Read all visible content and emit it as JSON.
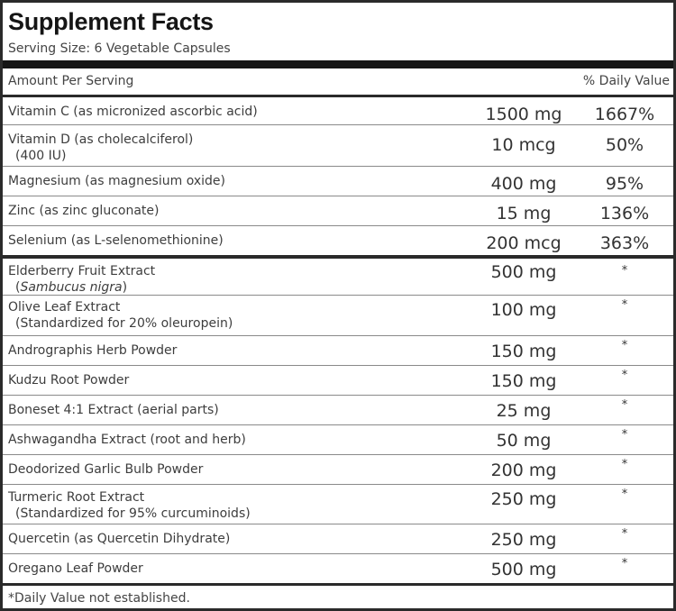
{
  "title": "Supplement Facts",
  "serving_size": "Serving Size: 6 Vegetable Capsules",
  "header": {
    "amount_label": "Amount Per Serving",
    "dv_label": "% Daily Value"
  },
  "vitamins": [
    {
      "name": "Vitamin C (as micronized ascorbic acid)",
      "name2": "",
      "amount": "1500 mg",
      "dv": "1667%"
    },
    {
      "name": "Vitamin D (as cholecalciferol)",
      "name2": "(400 IU)",
      "amount": "10 mcg",
      "dv": "50%"
    },
    {
      "name": "Magnesium (as magnesium oxide)",
      "name2": "",
      "amount": "400 mg",
      "dv": "95%"
    },
    {
      "name": "Zinc (as zinc gluconate)",
      "name2": "",
      "amount": "15 mg",
      "dv": "136%"
    },
    {
      "name": "Selenium (as L-selenomethionine)",
      "name2": "",
      "amount": "200 mcg",
      "dv": "363%"
    }
  ],
  "botanicals": [
    {
      "name": "Elderberry Fruit Extract",
      "name2_prefix": "(",
      "name2_italic": "Sambucus nigra",
      "name2_suffix": ")",
      "amount": "500 mg",
      "dv": "*"
    },
    {
      "name": "Olive Leaf Extract",
      "name2_prefix": "(Standardized for 20% oleuropein)",
      "name2_italic": "",
      "name2_suffix": "",
      "amount": "100 mg",
      "dv": "*"
    },
    {
      "name": "Andrographis Herb Powder",
      "amount": "150 mg",
      "dv": "*"
    },
    {
      "name": "Kudzu Root Powder",
      "amount": "150 mg",
      "dv": "*"
    },
    {
      "name": "Boneset 4:1 Extract (aerial parts)",
      "amount": "25 mg",
      "dv": "*"
    },
    {
      "name": "Ashwagandha Extract (root and herb)",
      "amount": "50 mg",
      "dv": "*"
    },
    {
      "name": "Deodorized Garlic Bulb Powder",
      "amount": "200 mg",
      "dv": "*"
    },
    {
      "name": "Turmeric Root Extract",
      "name2_prefix": "(Standardized for 95% curcuminoids)",
      "name2_italic": "",
      "name2_suffix": "",
      "amount": "250 mg",
      "dv": "*"
    },
    {
      "name": "Quercetin (as Quercetin Dihydrate)",
      "amount": "250 mg",
      "dv": "*"
    },
    {
      "name": "Oregano Leaf Powder",
      "amount": "500 mg",
      "dv": "*"
    }
  ],
  "footnote": "*Daily Value not established."
}
